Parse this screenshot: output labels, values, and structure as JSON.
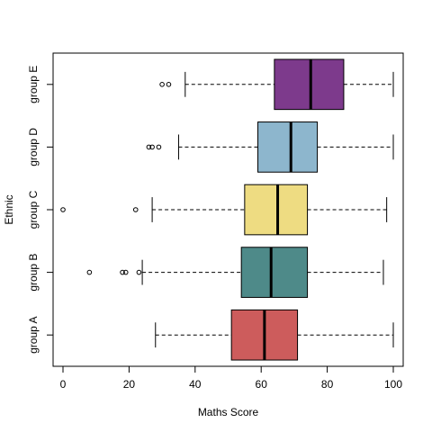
{
  "chart_data": {
    "type": "boxplot",
    "orientation": "horizontal",
    "xlabel": "Maths Score",
    "ylabel": "Ethnic",
    "xlim": [
      -3,
      103
    ],
    "x_ticks": [
      0,
      20,
      40,
      60,
      80,
      100
    ],
    "grid": false,
    "legend": "none",
    "categories": [
      "group A",
      "group B",
      "group C",
      "group D",
      "group E"
    ],
    "series": [
      {
        "category": "group A",
        "whisker_low": 28,
        "q1": 51,
        "median": 61,
        "q3": 71,
        "whisker_high": 100,
        "outliers": [],
        "color": "#CD5C5C"
      },
      {
        "category": "group B",
        "whisker_low": 24,
        "q1": 54,
        "median": 63,
        "q3": 74,
        "whisker_high": 97,
        "outliers": [
          8,
          18,
          19,
          23
        ],
        "color": "#4E8A89"
      },
      {
        "category": "group C",
        "whisker_low": 27,
        "q1": 55,
        "median": 65,
        "q3": 74,
        "whisker_high": 98,
        "outliers": [
          0,
          22
        ],
        "color": "#EEDC82"
      },
      {
        "category": "group D",
        "whisker_low": 35,
        "q1": 59,
        "median": 69,
        "q3": 77,
        "whisker_high": 100,
        "outliers": [
          26,
          27,
          29
        ],
        "color": "#8DB6CD"
      },
      {
        "category": "group E",
        "whisker_low": 37,
        "q1": 64,
        "median": 75,
        "q3": 85,
        "whisker_high": 100,
        "outliers": [
          30,
          32
        ],
        "color": "#7D3A8C"
      }
    ]
  }
}
